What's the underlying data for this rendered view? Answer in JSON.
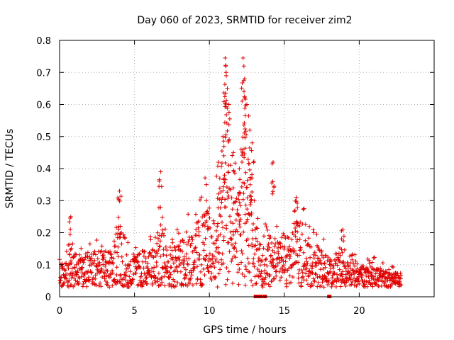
{
  "chart_data": {
    "type": "scatter",
    "title": "Day 060 of 2023, SRMTID for receiver zim2",
    "xlabel": "GPS time / hours",
    "ylabel": "SRMTID / TECUs",
    "xlim": [
      0,
      25
    ],
    "ylim": [
      0,
      0.8
    ],
    "xticks": [
      "0",
      "5",
      "10",
      "15",
      "20"
    ],
    "xtick_values": [
      0,
      5,
      10,
      15,
      20
    ],
    "yticks": [
      "0",
      "0.1",
      "0.2",
      "0.3",
      "0.4",
      "0.5",
      "0.6",
      "0.7",
      "0.8"
    ],
    "ytick_values": [
      0,
      0.1,
      0.2,
      0.3,
      0.4,
      0.5,
      0.6,
      0.7,
      0.8
    ],
    "grid": true,
    "marker": "+",
    "color": "#e00000",
    "series": [
      {
        "name": "SRMTID",
        "envelope": {
          "x": [
            0,
            0.5,
            0.7,
            1.0,
            1.5,
            2.0,
            2.5,
            3.0,
            3.5,
            3.8,
            4.0,
            4.3,
            4.6,
            5.0,
            5.5,
            6.0,
            6.5,
            6.8,
            7.2,
            7.6,
            8.0,
            8.4,
            8.8,
            9.2,
            9.6,
            10.0,
            10.3,
            10.6,
            10.9,
            11.1,
            11.4,
            11.7,
            12.0,
            12.2,
            12.5,
            12.8,
            13.0,
            13.2,
            13.5,
            13.8,
            14.1,
            14.4,
            14.7,
            15.0,
            15.4,
            15.8,
            16.2,
            16.6,
            17.0,
            17.5,
            18.0,
            18.5,
            19.0,
            19.5,
            20.0,
            20.5,
            21.0,
            21.5,
            22.0,
            22.5,
            22.8
          ],
          "y": [
            0.08,
            0.09,
            0.14,
            0.1,
            0.1,
            0.11,
            0.12,
            0.12,
            0.12,
            0.18,
            0.2,
            0.17,
            0.1,
            0.1,
            0.12,
            0.12,
            0.14,
            0.2,
            0.13,
            0.14,
            0.14,
            0.17,
            0.18,
            0.2,
            0.24,
            0.22,
            0.16,
            0.23,
            0.3,
            0.4,
            0.3,
            0.25,
            0.32,
            0.4,
            0.28,
            0.25,
            0.22,
            0.18,
            0.12,
            0.15,
            0.16,
            0.14,
            0.16,
            0.17,
            0.15,
            0.2,
            0.2,
            0.14,
            0.13,
            0.12,
            0.1,
            0.1,
            0.09,
            0.09,
            0.08,
            0.08,
            0.08,
            0.07,
            0.06,
            0.06,
            0.06
          ]
        },
        "peaks": [
          {
            "x": 0.75,
            "y": 0.25
          },
          {
            "x": 4.0,
            "y": 0.33
          },
          {
            "x": 6.75,
            "y": 0.39
          },
          {
            "x": 9.8,
            "y": 0.35
          },
          {
            "x": 10.9,
            "y": 0.5
          },
          {
            "x": 11.05,
            "y": 0.745
          },
          {
            "x": 11.1,
            "y": 0.72
          },
          {
            "x": 11.2,
            "y": 0.65
          },
          {
            "x": 11.3,
            "y": 0.6
          },
          {
            "x": 12.25,
            "y": 0.745
          },
          {
            "x": 12.3,
            "y": 0.72
          },
          {
            "x": 12.35,
            "y": 0.68
          },
          {
            "x": 12.5,
            "y": 0.6
          },
          {
            "x": 12.7,
            "y": 0.52
          },
          {
            "x": 12.85,
            "y": 0.48
          },
          {
            "x": 14.25,
            "y": 0.42
          },
          {
            "x": 15.8,
            "y": 0.31
          },
          {
            "x": 18.9,
            "y": 0.21
          },
          {
            "x": 10.6,
            "y": 0.42
          },
          {
            "x": 11.6,
            "y": 0.45
          },
          {
            "x": 12.0,
            "y": 0.4
          }
        ],
        "zero_points": [
          13.1,
          13.25,
          13.4,
          13.7,
          18.0
        ]
      }
    ]
  }
}
